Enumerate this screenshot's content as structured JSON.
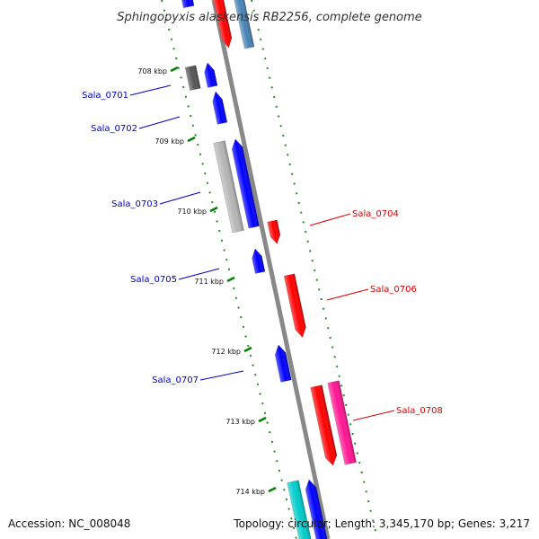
{
  "title": "Sphingopyxis alaskensis RB2256, complete genome",
  "accession": "Accession: NC_008048",
  "summary": "Topology: circular; Length: 3,345,170 bp; Genes: 3,217",
  "colors": {
    "forward_cds": "#0000ff",
    "reverse_cds": "#ff0000",
    "pink_feature": "#ff1493",
    "gray_feature": "#b5b5b5",
    "dark_feature": "#555555",
    "steel_feature": "#4682b4",
    "cyan_feature": "#00cccc",
    "backbone": "#888888",
    "tick": "#008000",
    "forward_label": "#0000cc",
    "reverse_label": "#dd0000"
  },
  "ticks": [
    "708 kbp",
    "709 kbp",
    "710 kbp",
    "711 kbp",
    "712 kbp",
    "713 kbp",
    "714 kbp"
  ],
  "genes": [
    {
      "id": "Sala_0701",
      "label": "Sala_0701",
      "strand": "forward"
    },
    {
      "id": "Sala_0702",
      "label": "Sala_0702",
      "strand": "forward"
    },
    {
      "id": "Sala_0703",
      "label": "Sala_0703",
      "strand": "forward"
    },
    {
      "id": "Sala_0704",
      "label": "Sala_0704",
      "strand": "reverse"
    },
    {
      "id": "Sala_0705",
      "label": "Sala_0705",
      "strand": "forward"
    },
    {
      "id": "Sala_0706",
      "label": "Sala_0706",
      "strand": "reverse"
    },
    {
      "id": "Sala_0707",
      "label": "Sala_0707",
      "strand": "forward"
    },
    {
      "id": "Sala_0708",
      "label": "Sala_0708",
      "strand": "reverse"
    }
  ]
}
